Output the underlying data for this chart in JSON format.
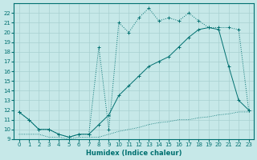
{
  "xlabel": "Humidex (Indice chaleur)",
  "xlim": [
    -0.5,
    23.5
  ],
  "ylim": [
    9,
    23
  ],
  "yticks": [
    9,
    10,
    11,
    12,
    13,
    14,
    15,
    16,
    17,
    18,
    19,
    20,
    21,
    22
  ],
  "xticks": [
    0,
    1,
    2,
    3,
    4,
    5,
    6,
    7,
    8,
    9,
    10,
    11,
    12,
    13,
    14,
    15,
    16,
    17,
    18,
    19,
    20,
    21,
    22,
    23
  ],
  "bg_color": "#c6e8e8",
  "grid_color": "#a8d0d0",
  "line_color": "#007070",
  "line1_x": [
    0,
    1,
    2,
    3,
    4,
    5,
    6,
    7,
    8,
    9,
    10,
    11,
    12,
    13,
    14,
    15,
    16,
    17,
    18,
    19,
    20,
    21,
    22,
    23
  ],
  "line1_y": [
    9.5,
    9.5,
    9.5,
    9.2,
    9.2,
    9.0,
    9.2,
    9.2,
    9.2,
    9.5,
    9.8,
    10.0,
    10.2,
    10.5,
    10.7,
    10.8,
    11.0,
    11.0,
    11.2,
    11.3,
    11.5,
    11.6,
    11.8,
    11.8
  ],
  "line2_x": [
    0,
    1,
    2,
    3,
    4,
    5,
    6,
    7,
    8,
    9,
    10,
    11,
    12,
    13,
    14,
    15,
    16,
    17,
    18,
    19,
    20,
    21,
    22,
    23
  ],
  "line2_y": [
    11.8,
    11.0,
    10.0,
    10.0,
    9.5,
    9.2,
    9.5,
    9.5,
    10.5,
    11.5,
    13.5,
    14.5,
    15.5,
    16.5,
    17.0,
    17.5,
    18.5,
    19.5,
    20.3,
    20.5,
    20.3,
    16.5,
    13.0,
    12.0
  ],
  "line3_x": [
    0,
    1,
    2,
    3,
    4,
    5,
    6,
    7,
    8,
    9,
    10,
    11,
    12,
    13,
    14,
    15,
    16,
    17,
    18,
    19,
    20,
    21,
    22,
    23
  ],
  "line3_y": [
    11.8,
    11.0,
    10.0,
    10.0,
    9.5,
    9.2,
    9.5,
    9.5,
    18.5,
    10.0,
    21.0,
    20.0,
    21.5,
    22.5,
    21.2,
    21.5,
    21.2,
    22.0,
    21.2,
    20.5,
    20.5,
    20.5,
    20.3,
    12.0
  ]
}
